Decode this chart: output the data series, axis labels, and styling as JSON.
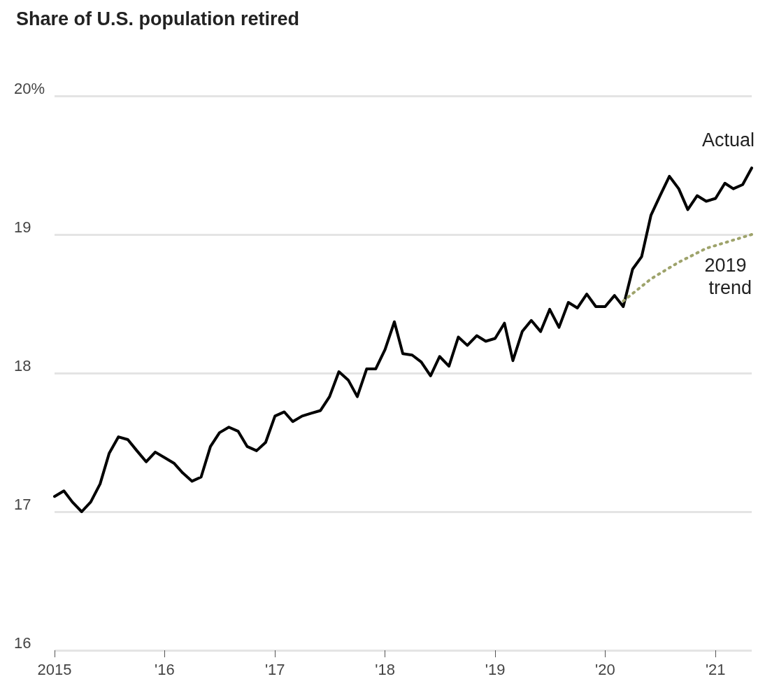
{
  "chart_data": {
    "type": "line",
    "title": "Share of U.S. population retired",
    "x": [
      "2015-01",
      "2015-02",
      "2015-03",
      "2015-04",
      "2015-05",
      "2015-06",
      "2015-07",
      "2015-08",
      "2015-09",
      "2015-10",
      "2015-11",
      "2015-12",
      "2016-01",
      "2016-02",
      "2016-03",
      "2016-04",
      "2016-05",
      "2016-06",
      "2016-07",
      "2016-08",
      "2016-09",
      "2016-10",
      "2016-11",
      "2016-12",
      "2017-01",
      "2017-02",
      "2017-03",
      "2017-04",
      "2017-05",
      "2017-06",
      "2017-07",
      "2017-08",
      "2017-09",
      "2017-10",
      "2017-11",
      "2017-12",
      "2018-01",
      "2018-02",
      "2018-03",
      "2018-04",
      "2018-05",
      "2018-06",
      "2018-07",
      "2018-08",
      "2018-09",
      "2018-10",
      "2018-11",
      "2018-12",
      "2019-01",
      "2019-02",
      "2019-03",
      "2019-04",
      "2019-05",
      "2019-06",
      "2019-07",
      "2019-08",
      "2019-09",
      "2019-10",
      "2019-11",
      "2019-12",
      "2020-01",
      "2020-02",
      "2020-03",
      "2020-04",
      "2020-05",
      "2020-06",
      "2020-07",
      "2020-08",
      "2020-09",
      "2020-10",
      "2020-11",
      "2020-12",
      "2021-01",
      "2021-02",
      "2021-03",
      "2021-04",
      "2021-05"
    ],
    "series": [
      {
        "name": "Actual",
        "color": "#000000",
        "line_style": "solid",
        "values": [
          17.11,
          17.15,
          17.07,
          17.0,
          17.07,
          17.2,
          17.42,
          17.54,
          17.52,
          17.44,
          17.36,
          17.43,
          17.39,
          17.35,
          17.28,
          17.22,
          17.25,
          17.47,
          17.57,
          17.61,
          17.58,
          17.47,
          17.44,
          17.5,
          17.69,
          17.72,
          17.65,
          17.69,
          17.71,
          17.73,
          17.83,
          18.01,
          17.95,
          17.83,
          18.03,
          18.03,
          18.17,
          18.37,
          18.14,
          18.13,
          18.08,
          17.98,
          18.12,
          18.05,
          18.26,
          18.2,
          18.27,
          18.23,
          18.25,
          18.36,
          18.09,
          18.3,
          18.38,
          18.3,
          18.46,
          18.33,
          18.51,
          18.47,
          18.57,
          18.48,
          18.48,
          18.56,
          18.48,
          18.75,
          18.84,
          19.14,
          19.28,
          19.42,
          19.33,
          19.18,
          19.28,
          19.24,
          19.26,
          19.37,
          19.33,
          19.36,
          19.48
        ]
      },
      {
        "name": "2019 trend",
        "color": "#9ea36b",
        "line_style": "dotted",
        "x": [
          "2020-03",
          "2020-06",
          "2020-09",
          "2020-12",
          "2021-05"
        ],
        "values": [
          18.52,
          18.68,
          18.8,
          18.9,
          19.0
        ]
      }
    ],
    "xlim": [
      "2015-01",
      "2021-05"
    ],
    "xticks": [
      {
        "value": "2015",
        "label": "2015"
      },
      {
        "value": "2016",
        "label": "'16"
      },
      {
        "value": "2017",
        "label": "'17"
      },
      {
        "value": "2018",
        "label": "'18"
      },
      {
        "value": "2019",
        "label": "'19"
      },
      {
        "value": "2020",
        "label": "'20"
      },
      {
        "value": "2021",
        "label": "'21"
      }
    ],
    "ylim": [
      16,
      20
    ],
    "yticks": [
      16,
      17,
      18,
      19,
      {
        "value": 20,
        "label": "20%"
      }
    ],
    "grid": "y",
    "legend": false,
    "marker": "none"
  }
}
